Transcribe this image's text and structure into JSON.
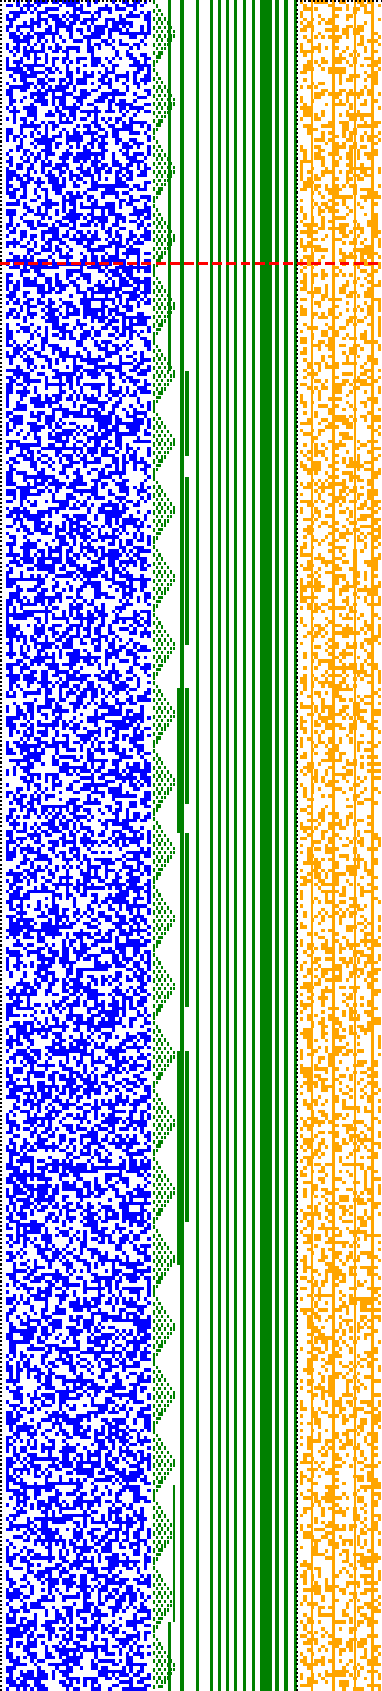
{
  "visualization": {
    "kind": "bitmap-pattern-plot",
    "text_labels": "none",
    "colors": {
      "background": "#ffffff",
      "dotted_border": "#000000",
      "blue_pattern": "#0000ff",
      "green_pattern": "#008000",
      "orange_pattern": "#ffa500",
      "marker_line": "#ff0000"
    },
    "regions": [
      {
        "name": "left-bit-field",
        "color_key": "blue_pattern",
        "fill_density": 0.5
      },
      {
        "name": "staircase-counter",
        "color_key": "green_pattern"
      },
      {
        "name": "vertical-stripes",
        "color_key": "green_pattern"
      },
      {
        "name": "right-bit-field",
        "color_key": "orange_pattern",
        "fill_density": 0.35
      }
    ],
    "marker": {
      "name": "horizontal-red-dashed-marker",
      "style": "dashed"
    }
  }
}
